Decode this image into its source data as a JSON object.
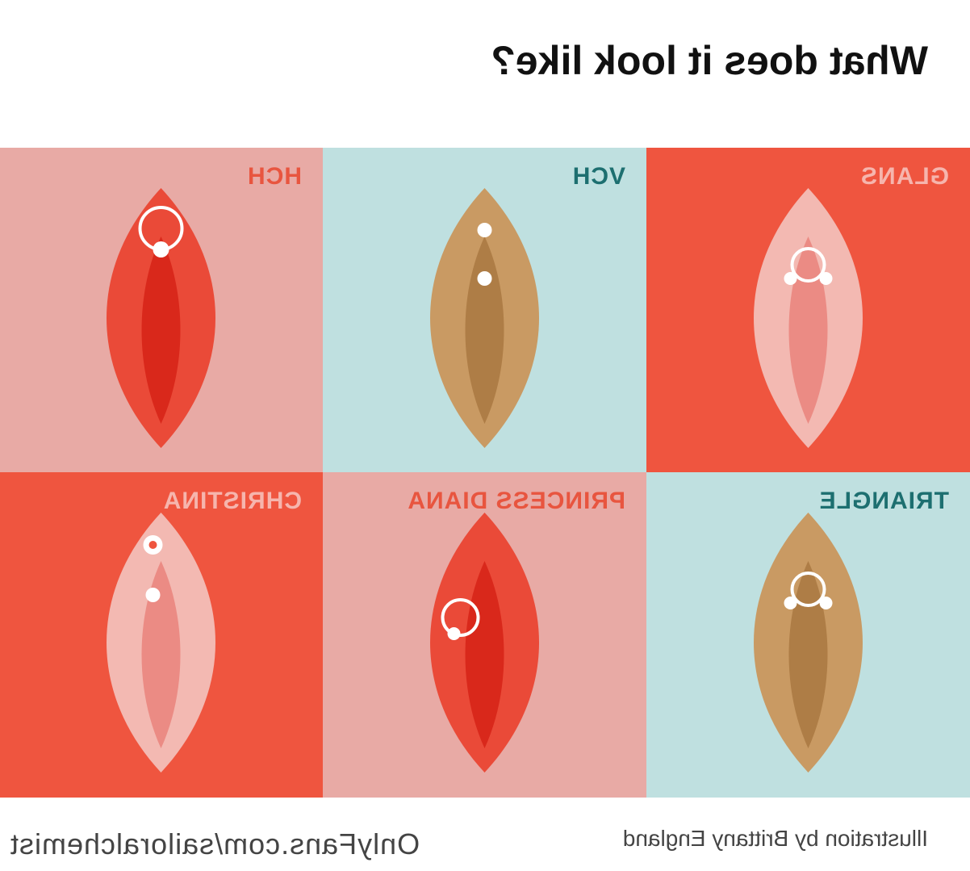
{
  "header": {
    "title": "What does it look like?"
  },
  "panels": [
    {
      "label": "GLANS"
    },
    {
      "label": "VCH"
    },
    {
      "label": "HCH"
    },
    {
      "label": "TRIANGLE"
    },
    {
      "label": "PRINCESS DIANA"
    },
    {
      "label": "CHRISTINA"
    }
  ],
  "footer": {
    "credit": "Illustration by Brittany England",
    "watermark": "OnlyFans.com/sailoralchemist"
  }
}
